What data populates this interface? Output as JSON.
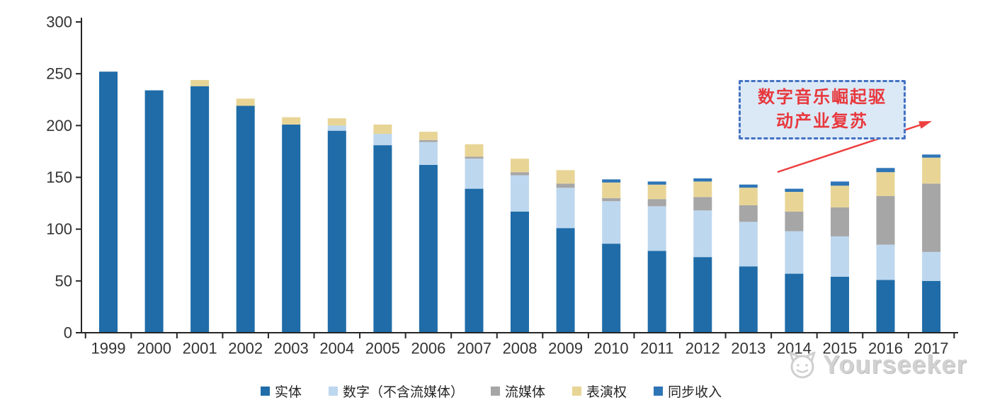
{
  "chart_data": {
    "type": "bar",
    "stacked": true,
    "title": "",
    "xlabel": "",
    "ylabel": "",
    "ylim": [
      0,
      300
    ],
    "y_ticks": [
      0,
      50,
      100,
      150,
      200,
      250,
      300
    ],
    "grid": false,
    "legend_position": "bottom",
    "categories": [
      "1999",
      "2000",
      "2001",
      "2002",
      "2003",
      "2004",
      "2005",
      "2006",
      "2007",
      "2008",
      "2009",
      "2010",
      "2011",
      "2012",
      "2013",
      "2014",
      "2015",
      "2016",
      "2017"
    ],
    "series": [
      {
        "name": "实体",
        "color": "#1F6CA8",
        "values": [
          252,
          234,
          238,
          219,
          201,
          195,
          181,
          162,
          139,
          117,
          101,
          86,
          79,
          73,
          64,
          57,
          54,
          51,
          50
        ]
      },
      {
        "name": "数字（不含流媒体）",
        "color": "#BDD7EE",
        "values": [
          0,
          0,
          0,
          0,
          0,
          5,
          11,
          22,
          29,
          35,
          39,
          41,
          43,
          45,
          43,
          41,
          39,
          34,
          28
        ]
      },
      {
        "name": "流媒体",
        "color": "#A6A6A6",
        "values": [
          0,
          0,
          0,
          0,
          0,
          0,
          0,
          2,
          2,
          3,
          4,
          3,
          7,
          13,
          16,
          19,
          28,
          47,
          66
        ]
      },
      {
        "name": "表演权",
        "color": "#E8D596",
        "values": [
          0,
          0,
          6,
          7,
          7,
          7,
          9,
          8,
          12,
          13,
          13,
          15,
          14,
          15,
          17,
          19,
          21,
          23,
          25
        ]
      },
      {
        "name": "同步收入",
        "color": "#2E75B6",
        "values": [
          0,
          0,
          0,
          0,
          0,
          0,
          0,
          0,
          0,
          0,
          0,
          3,
          3,
          3,
          3,
          3,
          4,
          4,
          3
        ]
      }
    ]
  },
  "axis": {
    "line_color": "#262626",
    "label_color": "#333333"
  },
  "annotation": {
    "line1": "数字音乐崛起驱",
    "line2": "动产业复苏",
    "text_color": "#E8383D",
    "border_color": "#4472C4",
    "fill_color": "#DBE9F7",
    "arrow_color": "#ED3F3F"
  },
  "watermark": {
    "text": "Yourseeker"
  }
}
